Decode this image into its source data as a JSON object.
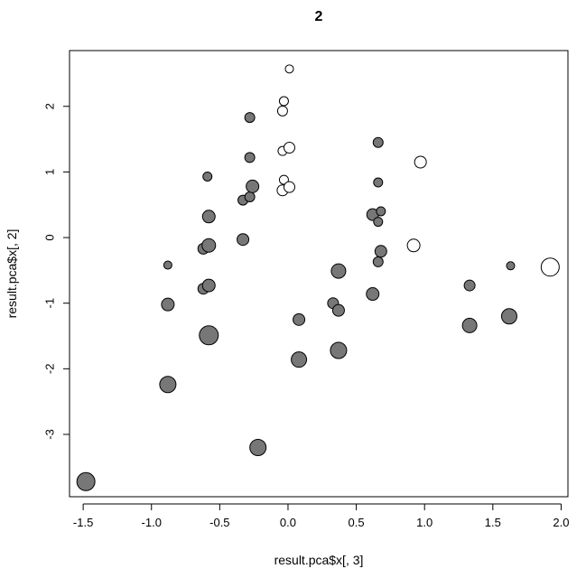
{
  "chart_data": {
    "type": "scatter",
    "title": "2",
    "xlabel": "result.pca$x[, 3]",
    "ylabel": "result.pca$x[, 2]",
    "xlim": [
      -1.6,
      2.05
    ],
    "ylim": [
      -3.95,
      2.85
    ],
    "xticks": [
      -1.5,
      -1.0,
      -0.5,
      0.0,
      0.5,
      1.0,
      1.5,
      2.0
    ],
    "xtick_labels": [
      "-1.5",
      "-1.0",
      "-0.5",
      "0.0",
      "0.5",
      "1.0",
      "1.5",
      "2.0"
    ],
    "yticks": [
      -3,
      -2,
      -1,
      0,
      1,
      2
    ],
    "ytick_labels": [
      "-3",
      "-2",
      "-1",
      "0",
      "1",
      "2"
    ],
    "grid": false,
    "legend": "none",
    "colors": {
      "group_a": "#777777",
      "group_b": "#ffffff",
      "outline": "#000000"
    },
    "series": [
      {
        "fill": "#777777",
        "points": [
          {
            "x": -1.48,
            "y": -3.72,
            "size": 10
          },
          {
            "x": -0.88,
            "y": -0.42,
            "size": 4.5
          },
          {
            "x": -0.88,
            "y": -1.02,
            "size": 7
          },
          {
            "x": -0.88,
            "y": -2.24,
            "size": 9
          },
          {
            "x": -0.62,
            "y": -0.17,
            "size": 6
          },
          {
            "x": -0.62,
            "y": -0.78,
            "size": 6
          },
          {
            "x": -0.59,
            "y": 0.93,
            "size": 5
          },
          {
            "x": -0.58,
            "y": 0.32,
            "size": 7
          },
          {
            "x": -0.58,
            "y": -0.12,
            "size": 7.5
          },
          {
            "x": -0.58,
            "y": -0.73,
            "size": 7
          },
          {
            "x": -0.58,
            "y": -1.49,
            "size": 10.5
          },
          {
            "x": -0.33,
            "y": 0.57,
            "size": 5.5
          },
          {
            "x": -0.33,
            "y": -0.03,
            "size": 6.5
          },
          {
            "x": -0.28,
            "y": 1.83,
            "size": 5.5
          },
          {
            "x": -0.28,
            "y": 1.22,
            "size": 5.5
          },
          {
            "x": -0.28,
            "y": 0.62,
            "size": 5.5
          },
          {
            "x": -0.26,
            "y": 0.78,
            "size": 7
          },
          {
            "x": -0.22,
            "y": -3.2,
            "size": 9
          },
          {
            "x": 0.08,
            "y": -1.25,
            "size": 6.5
          },
          {
            "x": 0.08,
            "y": -1.86,
            "size": 8.5
          },
          {
            "x": 0.33,
            "y": -1.0,
            "size": 6
          },
          {
            "x": 0.37,
            "y": -0.51,
            "size": 8
          },
          {
            "x": 0.37,
            "y": -1.11,
            "size": 6.5
          },
          {
            "x": 0.37,
            "y": -1.72,
            "size": 9
          },
          {
            "x": 0.62,
            "y": 0.35,
            "size": 6.5
          },
          {
            "x": 0.62,
            "y": -0.86,
            "size": 7
          },
          {
            "x": 0.66,
            "y": 1.45,
            "size": 5.5
          },
          {
            "x": 0.66,
            "y": 0.84,
            "size": 5
          },
          {
            "x": 0.66,
            "y": 0.24,
            "size": 5
          },
          {
            "x": 0.66,
            "y": -0.37,
            "size": 5.5
          },
          {
            "x": 0.68,
            "y": 0.4,
            "size": 5
          },
          {
            "x": 0.68,
            "y": -0.21,
            "size": 6.5
          },
          {
            "x": 1.33,
            "y": -0.73,
            "size": 6
          },
          {
            "x": 1.33,
            "y": -1.34,
            "size": 8
          },
          {
            "x": 1.62,
            "y": -1.2,
            "size": 8.5
          },
          {
            "x": 1.63,
            "y": -0.43,
            "size": 4.5
          }
        ]
      },
      {
        "fill": "#ffffff",
        "points": [
          {
            "x": 0.01,
            "y": 2.57,
            "size": 4.5
          },
          {
            "x": -0.03,
            "y": 2.08,
            "size": 5
          },
          {
            "x": -0.04,
            "y": 1.93,
            "size": 5.5
          },
          {
            "x": -0.04,
            "y": 1.32,
            "size": 5
          },
          {
            "x": 0.01,
            "y": 1.37,
            "size": 6
          },
          {
            "x": -0.03,
            "y": 0.88,
            "size": 5
          },
          {
            "x": -0.04,
            "y": 0.72,
            "size": 6
          },
          {
            "x": 0.01,
            "y": 0.77,
            "size": 6
          },
          {
            "x": 0.92,
            "y": -0.12,
            "size": 7
          },
          {
            "x": 0.97,
            "y": 1.15,
            "size": 6.5
          },
          {
            "x": 1.92,
            "y": -0.45,
            "size": 10
          }
        ]
      }
    ]
  }
}
